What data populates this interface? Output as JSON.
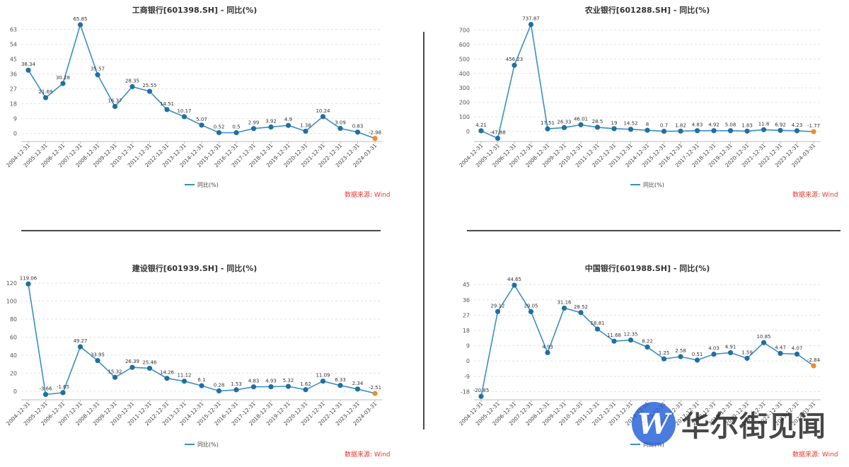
{
  "chart_data": [
    {
      "type": "line",
      "title": "工商银行[601398.SH] - 同比(%)",
      "categories": [
        "2004-12-31",
        "2005-12-31",
        "2006-12-31",
        "2007-12-31",
        "2008-12-31",
        "2009-12-31",
        "2010-12-31",
        "2011-12-31",
        "2012-12-31",
        "2013-12-31",
        "2014-12-31",
        "2015-12-31",
        "2016-12-31",
        "2017-12-31",
        "2018-12-31",
        "2019-12-31",
        "2020-12-31",
        "2021-12-31",
        "2022-12-31",
        "2023-12-31",
        "2024-03-31"
      ],
      "series": [
        {
          "name": "同比(%)",
          "values": [
            38.34,
            21.69,
            30.28,
            65.85,
            35.57,
            16.37,
            28.35,
            25.55,
            14.51,
            10.17,
            5.07,
            0.52,
            0.5,
            2.99,
            3.92,
            4.9,
            1.38,
            10.24,
            3.09,
            0.83,
            -2.98
          ]
        }
      ],
      "yticks": [
        0,
        9,
        18,
        27,
        36,
        45,
        54,
        63
      ],
      "ylim": [
        -4,
        68
      ],
      "legend": "bottom-center",
      "grid": true,
      "source_label": "数据来源: Wind",
      "colors": {
        "line": "#3b8fc2",
        "point": "#1f6fa3",
        "last_point": "#f08c2a"
      }
    },
    {
      "type": "line",
      "title": "农业银行[601288.SH] - 同比(%)",
      "categories": [
        "2004-12-31",
        "2005-12-31",
        "2006-12-31",
        "2007-12-31",
        "2008-12-31",
        "2009-12-31",
        "2010-12-31",
        "2011-12-31",
        "2012-12-31",
        "2013-12-31",
        "2014-12-31",
        "2015-12-31",
        "2016-12-31",
        "2017-12-31",
        "2018-12-31",
        "2019-12-31",
        "2020-12-31",
        "2021-12-31",
        "2022-12-31",
        "2023-12-31",
        "2024-03-31"
      ],
      "series": [
        {
          "name": "同比(%)",
          "values": [
            4.21,
            -47.88,
            456.23,
            737.87,
            17.51,
            26.33,
            46.01,
            28.5,
            19,
            14.52,
            8,
            0.7,
            1.82,
            4.83,
            4.92,
            5.08,
            1.83,
            11.8,
            6.92,
            4.23,
            -1.77
          ]
        }
      ],
      "yticks": [
        0,
        100,
        200,
        300,
        400,
        500,
        600,
        700
      ],
      "ylim": [
        -60,
        760
      ],
      "legend": "bottom-center",
      "grid": true,
      "source_label": "数据来源: Wind",
      "colors": {
        "line": "#3b8fc2",
        "point": "#1f6fa3",
        "last_point": "#f08c2a"
      }
    },
    {
      "type": "line",
      "title": "建设银行[601939.SH] - 同比(%)",
      "categories": [
        "2004-12-31",
        "2005-12-31",
        "2006-12-31",
        "2007-12-31",
        "2008-12-31",
        "2009-12-31",
        "2010-12-31",
        "2011-12-31",
        "2012-12-31",
        "2013-12-31",
        "2014-12-31",
        "2015-12-31",
        "2016-12-31",
        "2017-12-31",
        "2018-12-31",
        "2019-12-31",
        "2020-12-31",
        "2021-12-31",
        "2022-12-31",
        "2023-12-31",
        "2024-03-31"
      ],
      "series": [
        {
          "name": "同比(%)",
          "values": [
            119.06,
            -3.66,
            -1.65,
            49.27,
            33.95,
            15.32,
            26.39,
            25.46,
            14.26,
            11.12,
            6.1,
            0.28,
            1.53,
            4.83,
            4.93,
            5.32,
            1.62,
            11.09,
            6.33,
            2.34,
            -2.51
          ]
        }
      ],
      "yticks": [
        0,
        20,
        40,
        60,
        80,
        100,
        120
      ],
      "ylim": [
        -8,
        124
      ],
      "legend": "bottom-center",
      "grid": true,
      "source_label": "数据来源: Wind",
      "colors": {
        "line": "#3b8fc2",
        "point": "#1f6fa3",
        "last_point": "#f08c2a"
      }
    },
    {
      "type": "line",
      "title": "中国银行[601988.SH] - 同比(%)",
      "categories": [
        "2004-12-31",
        "2005-12-31",
        "2006-12-31",
        "2007-12-31",
        "2008-12-31",
        "2009-12-31",
        "2010-12-31",
        "2011-12-31",
        "2012-12-31",
        "2013-12-31",
        "2014-12-31",
        "2015-12-31",
        "2016-12-31",
        "2017-12-31",
        "2018-12-31",
        "2019-12-31",
        "2020-12-31",
        "2021-12-31",
        "2022-12-31",
        "2023-12-31",
        "2024-03-31"
      ],
      "series": [
        {
          "name": "同比(%)",
          "values": [
            -20.85,
            29.12,
            44.65,
            29.05,
            4.93,
            31.16,
            28.52,
            18.81,
            11.68,
            12.35,
            8.22,
            1.25,
            2.58,
            0.51,
            4.03,
            4.91,
            1.59,
            10.85,
            4.47,
            4.07,
            -2.84
          ]
        }
      ],
      "yticks": [
        -18,
        -9,
        0,
        9,
        18,
        27,
        36,
        45
      ],
      "ylim": [
        -22,
        48
      ],
      "legend": "bottom-center",
      "grid": true,
      "source_label": "数据来源: Wind",
      "colors": {
        "line": "#3b8fc2",
        "point": "#1f6fa3",
        "last_point": "#f08c2a"
      }
    }
  ],
  "watermark": {
    "logo_letter": "W",
    "text": "华尔街见闻"
  }
}
